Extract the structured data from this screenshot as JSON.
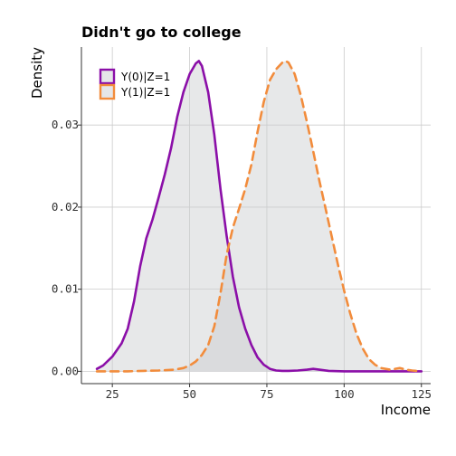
{
  "chart_data": {
    "type": "area",
    "title": "Didn't go to college",
    "xlabel": "Income",
    "ylabel": "Density",
    "xlim": [
      15,
      128
    ],
    "ylim": [
      -0.0015,
      0.0395
    ],
    "xticks": [
      25,
      50,
      75,
      100,
      125
    ],
    "xtick_labels": [
      "25",
      "50",
      "75",
      "100",
      "125"
    ],
    "yticks": [
      0,
      0.01,
      0.02,
      0.03
    ],
    "ytick_labels": [
      "0.00",
      "0.01",
      "0.02",
      "0.03"
    ],
    "grid": true,
    "legend_position": "top-left",
    "fill_color": "#e5e6e8",
    "series": [
      {
        "name": "Y(0)|Z=1",
        "color": "#8b0fa8",
        "dash": "solid",
        "x": [
          20,
          22,
          25,
          28,
          30,
          32,
          34,
          36,
          38,
          40,
          42,
          44,
          46,
          48,
          50,
          52,
          53,
          54,
          56,
          58,
          60,
          62,
          64,
          66,
          68,
          70,
          72,
          74,
          76,
          78,
          80,
          82,
          85,
          88,
          90,
          92,
          95,
          100,
          110,
          120,
          125
        ],
        "y": [
          0.0003,
          0.0007,
          0.0018,
          0.0034,
          0.0052,
          0.0085,
          0.0128,
          0.0162,
          0.0185,
          0.0212,
          0.024,
          0.0272,
          0.031,
          0.034,
          0.0362,
          0.0375,
          0.0378,
          0.0372,
          0.034,
          0.0288,
          0.0222,
          0.0165,
          0.0115,
          0.0078,
          0.0052,
          0.0032,
          0.0017,
          0.0008,
          0.0003,
          0.0001,
          5e-05,
          5e-05,
          0.0001,
          0.0002,
          0.0003,
          0.0002,
          5e-05,
          0.0,
          0.0,
          0.0,
          0.0
        ]
      },
      {
        "name": "Y(1)|Z=1",
        "color": "#f28c3c",
        "dash": "dashed",
        "x": [
          20,
          25,
          30,
          35,
          40,
          45,
          48,
          50,
          52,
          54,
          56,
          58,
          60,
          62,
          64,
          66,
          68,
          70,
          72,
          74,
          76,
          78,
          80,
          81,
          82,
          84,
          86,
          88,
          90,
          92,
          94,
          96,
          98,
          100,
          102,
          104,
          106,
          108,
          110,
          112,
          115,
          118,
          120,
          122,
          125
        ],
        "y": [
          0.0,
          0.0,
          0.0,
          5e-05,
          0.0001,
          0.0002,
          0.0004,
          0.0007,
          0.0012,
          0.002,
          0.0032,
          0.0055,
          0.0095,
          0.0142,
          0.0175,
          0.0198,
          0.0222,
          0.0252,
          0.0292,
          0.0328,
          0.0355,
          0.0368,
          0.0376,
          0.0378,
          0.0376,
          0.0362,
          0.0336,
          0.0303,
          0.0268,
          0.0232,
          0.0198,
          0.0164,
          0.013,
          0.0098,
          0.007,
          0.0046,
          0.0028,
          0.0015,
          0.0008,
          0.0004,
          0.0002,
          0.0004,
          0.0002,
          0.0001,
          0.0
        ]
      }
    ]
  }
}
